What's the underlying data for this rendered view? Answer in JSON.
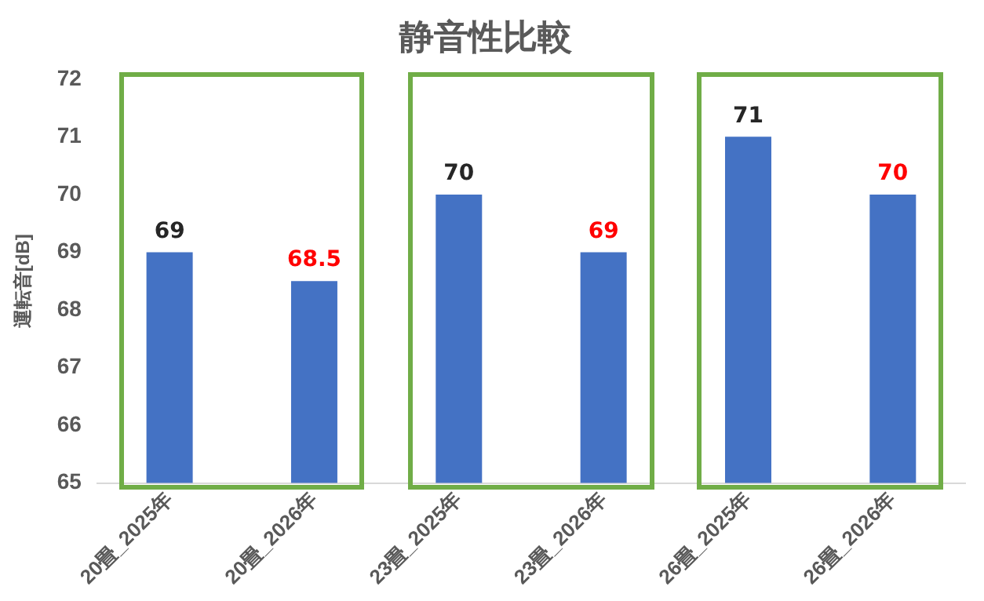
{
  "chart_data": {
    "type": "bar",
    "title": "静音性比較",
    "ylabel": "運転音[dB]",
    "categories": [
      "20畳_2025年",
      "20畳_2026年",
      "23畳_2025年",
      "23畳_2026年",
      "26畳_2025年",
      "26畳_2026年"
    ],
    "values": [
      69,
      68.5,
      70,
      69,
      71,
      70
    ],
    "color": "#4472c4",
    "ylim": [
      65,
      72
    ],
    "yticks": [
      65,
      66,
      67,
      68,
      69,
      70,
      71,
      72
    ],
    "grid": false,
    "legend": false,
    "data_labels": true
  }
}
